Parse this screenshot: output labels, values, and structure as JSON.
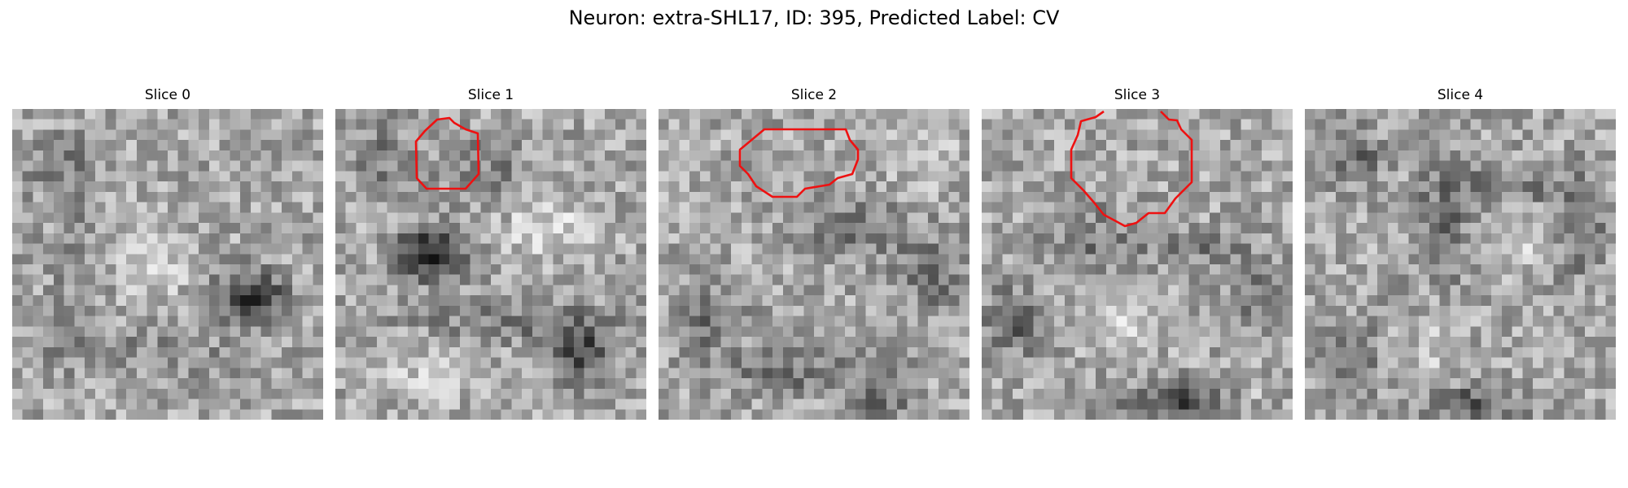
{
  "title": "Neuron: extra-SHL17, ID: 395, Predicted Label: CV",
  "contour_color": "#ee1111",
  "panels": [
    {
      "label": "Slice 0"
    },
    {
      "label": "Slice 1"
    },
    {
      "label": "Slice 2"
    },
    {
      "label": "Slice 3"
    },
    {
      "label": "Slice 4"
    }
  ]
}
